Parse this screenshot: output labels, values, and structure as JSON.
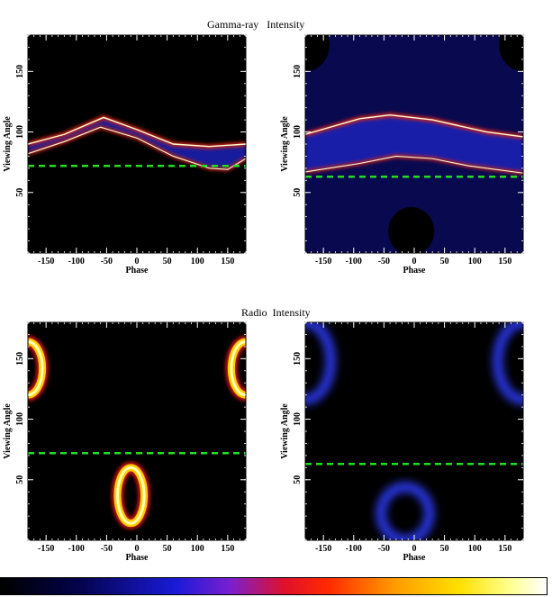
{
  "titles": {
    "gamma": "Gamma-ray   Intensity",
    "radio": "Radio  Intensity"
  },
  "colors": {
    "dashed_line": "#22dd22",
    "background": "#000000"
  },
  "chart_data": [
    {
      "type": "heatmap",
      "panel": "gamma-ray intensity (left)",
      "xlabel": "Phase",
      "ylabel": "Viewing Angle",
      "xlim": [
        -180,
        180
      ],
      "ylim": [
        0,
        180
      ],
      "xticks": [
        -150,
        -100,
        -50,
        0,
        50,
        100,
        150
      ],
      "xtick_labels": [
        "-150",
        "-100",
        "-50",
        "0",
        "50",
        "100",
        "150"
      ],
      "yticks": [
        50,
        100,
        150
      ],
      "ytick_labels": [
        "50",
        "100",
        "150"
      ],
      "dashed_line_y": 72,
      "band_lower": [
        [
          -180,
          82
        ],
        [
          -120,
          92
        ],
        [
          -60,
          104
        ],
        [
          0,
          95
        ],
        [
          60,
          80
        ],
        [
          120,
          70
        ],
        [
          150,
          69
        ],
        [
          180,
          78
        ]
      ],
      "band_upper": [
        [
          -180,
          90
        ],
        [
          -120,
          98
        ],
        [
          -55,
          112
        ],
        [
          0,
          102
        ],
        [
          60,
          90
        ],
        [
          120,
          88
        ],
        [
          180,
          90
        ]
      ]
    },
    {
      "type": "heatmap",
      "panel": "gamma-ray intensity (right)",
      "xlabel": "Phase",
      "ylabel": "Viewing Angle",
      "xlim": [
        -180,
        180
      ],
      "ylim": [
        0,
        180
      ],
      "xticks": [
        -150,
        -100,
        -50,
        0,
        50,
        100,
        150
      ],
      "xtick_labels": [
        "-150",
        "-100",
        "-50",
        "0",
        "50",
        "100",
        "150"
      ],
      "yticks": [
        50,
        100,
        150
      ],
      "ytick_labels": [
        "50",
        "100",
        "150"
      ],
      "dashed_line_y": 63,
      "band_lower": [
        [
          -180,
          67
        ],
        [
          -90,
          74
        ],
        [
          -30,
          80
        ],
        [
          30,
          78
        ],
        [
          90,
          72
        ],
        [
          180,
          66
        ]
      ],
      "band_upper": [
        [
          -180,
          98
        ],
        [
          -90,
          111
        ],
        [
          -40,
          114
        ],
        [
          30,
          110
        ],
        [
          120,
          100
        ],
        [
          180,
          96
        ]
      ]
    },
    {
      "type": "heatmap",
      "panel": "radio intensity (left)",
      "xlabel": "Phase",
      "ylabel": "Viewing Angle",
      "xlim": [
        -180,
        180
      ],
      "ylim": [
        0,
        180
      ],
      "xticks": [
        -150,
        -100,
        -50,
        0,
        50,
        100,
        150
      ],
      "xtick_labels": [
        "-150",
        "-100",
        "-50",
        "0",
        "50",
        "100",
        "150"
      ],
      "yticks": [
        50,
        100,
        150
      ],
      "ytick_labels": [
        "50",
        "100",
        "150"
      ],
      "dashed_line_y": 72,
      "rings": [
        {
          "phase": -10,
          "angle": 37,
          "r_phase": 22,
          "r_angle": 23
        },
        {
          "phase": 180,
          "angle": 142,
          "r_phase": 24,
          "r_angle": 22
        },
        {
          "phase": -180,
          "angle": 142,
          "r_phase": 24,
          "r_angle": 22
        }
      ]
    },
    {
      "type": "heatmap",
      "panel": "radio intensity (right)",
      "xlabel": "Phase",
      "ylabel": "Viewing Angle",
      "xlim": [
        -180,
        180
      ],
      "ylim": [
        0,
        180
      ],
      "xticks": [
        -150,
        -100,
        -50,
        0,
        50,
        100,
        150
      ],
      "xtick_labels": [
        "-150",
        "-100",
        "-50",
        "0",
        "50",
        "100",
        "150"
      ],
      "yticks": [
        50,
        100,
        150
      ],
      "ytick_labels": [
        "50",
        "100",
        "150"
      ],
      "dashed_line_y": 63,
      "rings": [
        {
          "phase": -15,
          "angle": 22,
          "r_phase": 40,
          "r_angle": 22
        },
        {
          "phase": 180,
          "angle": 148,
          "r_phase": 42,
          "r_angle": 32
        },
        {
          "phase": -180,
          "angle": 148,
          "r_phase": 42,
          "r_angle": 32
        }
      ]
    }
  ]
}
